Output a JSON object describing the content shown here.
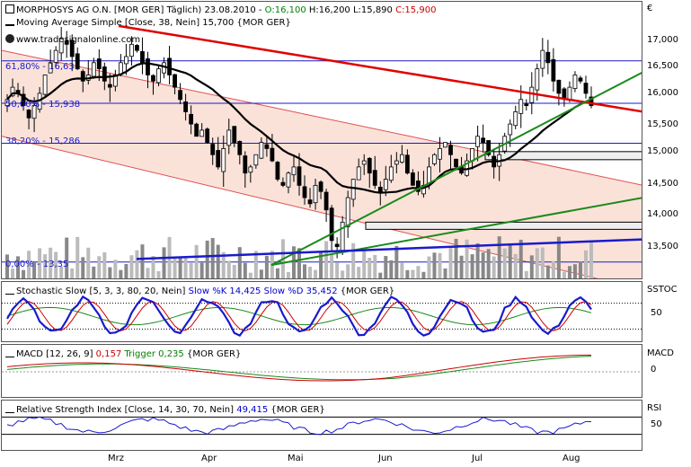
{
  "header": {
    "instrument": "MORPHOSYS AG O.N. [MOR GER] Täglich) 23.08.2010 - ",
    "o": "O:16,100",
    "h": " H:16,200",
    "l": " L:15,890",
    "c": " C:15,900"
  },
  "watermark": "www.tradesignalonline.com",
  "currency_label": "€",
  "panels": {
    "price": {
      "indicator_title": "Moving Average Simple [Close, 38, Nein] 15,700 {MOR GER}",
      "fib_labels": [
        "61,80% - 16,63",
        "50,00% - 15,938",
        "38,20% - 15,286",
        "0,00% - 13,35"
      ],
      "ticks": [
        "17,000",
        "16,500",
        "16,000",
        "15,500",
        "15,000",
        "14,500",
        "14,000",
        "13,500"
      ]
    },
    "stoch": {
      "title_prefix": "Stochastic Slow [5, 3, 3, 80, 20, Nein] ",
      "k_label": "Slow %K 14,425",
      "d_label": " Slow %D 35,452",
      "suffix": " {MOR GER}",
      "axis_name": "SSTOC",
      "tick": "50"
    },
    "macd": {
      "title_prefix": "MACD [12, 26, 9] ",
      "value": "0,157",
      "trigger": " Trigger 0,235",
      "suffix": " {MOR GER}",
      "axis_name": "MACD",
      "tick": "0"
    },
    "rsi": {
      "title_prefix": "Relative Strength Index [Close, 14, 30, 70, Nein] ",
      "value": "49,415",
      "suffix": " {MOR GER}",
      "axis_name": "RSI",
      "tick": "50"
    }
  },
  "months": [
    "Mrz",
    "Apr",
    "Mai",
    "Jun",
    "Jul",
    "Aug"
  ],
  "colors": {
    "up": "#ffffff",
    "down": "#000000",
    "ma": "#000000",
    "channel_fill": "#f8d8cc",
    "resistance": "#e00000",
    "support_green": "#1a8a1a",
    "support_blue": "#1a1acc",
    "fib": "#1a1acc",
    "stoch_k": "#1a1acc",
    "stoch_d": "#cc0000",
    "rsi": "#1a1acc"
  },
  "chart_data": {
    "type": "candlestick",
    "title": "MORPHOSYS AG O.N. [MOR GER]",
    "x_months": [
      "Mrz",
      "Apr",
      "Mai",
      "Jun",
      "Jul",
      "Aug"
    ],
    "ylim": [
      13.2,
      17.3
    ],
    "last": {
      "date": "23.08.2010",
      "open": 16.1,
      "high": 16.2,
      "low": 15.89,
      "close": 15.9
    },
    "sma38_last": 15.7,
    "fibonacci": [
      {
        "level": "61,80%",
        "value": 16.63
      },
      {
        "level": "50,00%",
        "value": 15.938
      },
      {
        "level": "38,20%",
        "value": 15.286
      },
      {
        "level": "0,00%",
        "value": 13.35
      }
    ],
    "close_series": [
      16.0,
      16.2,
      16.1,
      15.9,
      15.7,
      15.9,
      16.1,
      16.4,
      16.6,
      16.8,
      17.0,
      16.9,
      16.7,
      16.5,
      16.3,
      16.4,
      16.6,
      16.5,
      16.3,
      16.2,
      16.4,
      16.6,
      16.7,
      16.9,
      16.8,
      16.6,
      16.4,
      16.3,
      16.5,
      16.6,
      16.4,
      16.2,
      16.0,
      15.8,
      15.6,
      15.4,
      15.5,
      15.3,
      15.1,
      14.9,
      15.2,
      15.5,
      15.3,
      15.1,
      14.8,
      14.9,
      15.1,
      15.3,
      15.2,
      15.0,
      14.7,
      14.6,
      14.8,
      14.9,
      14.6,
      14.4,
      14.3,
      14.6,
      14.5,
      14.2,
      13.7,
      13.6,
      14.0,
      14.4,
      14.7,
      14.9,
      15.0,
      14.8,
      14.6,
      14.5,
      14.7,
      14.9,
      15.0,
      15.1,
      14.8,
      14.6,
      14.5,
      14.6,
      14.9,
      15.1,
      15.2,
      15.3,
      15.1,
      14.9,
      14.8,
      15.0,
      15.2,
      15.4,
      15.3,
      15.1,
      14.9,
      15.1,
      15.4,
      15.6,
      15.8,
      16.0,
      15.9,
      16.2,
      16.5,
      16.8,
      16.6,
      16.3,
      16.1,
      16.0,
      16.2,
      16.4,
      16.3,
      16.1,
      15.9
    ],
    "stoch_last": {
      "k": 14.425,
      "d": 35.452
    },
    "macd_last": {
      "macd": 0.157,
      "trigger": 0.235
    },
    "rsi_last": 49.415
  }
}
